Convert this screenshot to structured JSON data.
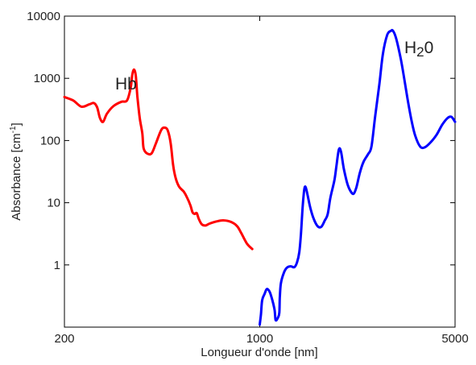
{
  "chart_data": {
    "type": "line",
    "title": "",
    "xlabel": "Longueur d'onde [nm]",
    "ylabel_main": "Absorbance [cm",
    "ylabel_sup": "-1",
    "ylabel_close": "]",
    "x_scale": "log",
    "y_scale": "log",
    "xlim": [
      200,
      5000
    ],
    "ylim": [
      0.1,
      10000
    ],
    "grid": false,
    "x_ticks": [
      {
        "value": 200,
        "label": "200"
      },
      {
        "value": 1000,
        "label": "1000"
      },
      {
        "value": 5000,
        "label": "5000"
      }
    ],
    "y_ticks": [
      {
        "value": 1,
        "label": "1"
      },
      {
        "value": 10,
        "label": "10"
      },
      {
        "value": 100,
        "label": "100"
      },
      {
        "value": 1000,
        "label": "1000"
      },
      {
        "value": 10000,
        "label": "10000"
      }
    ],
    "series": [
      {
        "name": "Hb",
        "color": "#ff0000",
        "points": [
          [
            200,
            500
          ],
          [
            215,
            440
          ],
          [
            230,
            350
          ],
          [
            245,
            380
          ],
          [
            255,
            400
          ],
          [
            262,
            340
          ],
          [
            268,
            230
          ],
          [
            275,
            200
          ],
          [
            284,
            270
          ],
          [
            300,
            360
          ],
          [
            320,
            420
          ],
          [
            335,
            440
          ],
          [
            345,
            700
          ],
          [
            350,
            1150
          ],
          [
            355,
            1380
          ],
          [
            360,
            1100
          ],
          [
            365,
            500
          ],
          [
            372,
            230
          ],
          [
            380,
            130
          ],
          [
            384,
            75
          ],
          [
            395,
            62
          ],
          [
            410,
            62
          ],
          [
            425,
            90
          ],
          [
            445,
            150
          ],
          [
            460,
            160
          ],
          [
            470,
            140
          ],
          [
            480,
            90
          ],
          [
            490,
            40
          ],
          [
            500,
            25
          ],
          [
            515,
            18
          ],
          [
            535,
            15
          ],
          [
            550,
            12
          ],
          [
            565,
            9
          ],
          [
            575,
            7
          ],
          [
            585,
            6.6
          ],
          [
            595,
            6.8
          ],
          [
            605,
            5.5
          ],
          [
            620,
            4.5
          ],
          [
            640,
            4.3
          ],
          [
            660,
            4.6
          ],
          [
            700,
            5.0
          ],
          [
            740,
            5.2
          ],
          [
            790,
            4.9
          ],
          [
            830,
            4.2
          ],
          [
            860,
            3.2
          ],
          [
            900,
            2.2
          ],
          [
            940,
            1.8
          ]
        ]
      },
      {
        "name": "H",
        "name_sub": "2",
        "name_suffix": "0",
        "color": "#0000ff",
        "points": [
          [
            1000,
            0.11
          ],
          [
            1010,
            0.16
          ],
          [
            1020,
            0.27
          ],
          [
            1040,
            0.34
          ],
          [
            1060,
            0.41
          ],
          [
            1085,
            0.37
          ],
          [
            1110,
            0.27
          ],
          [
            1130,
            0.19
          ],
          [
            1140,
            0.13
          ],
          [
            1160,
            0.14
          ],
          [
            1175,
            0.17
          ],
          [
            1180,
            0.3
          ],
          [
            1190,
            0.5
          ],
          [
            1220,
            0.75
          ],
          [
            1250,
            0.9
          ],
          [
            1290,
            0.95
          ],
          [
            1330,
            0.92
          ],
          [
            1360,
            1.1
          ],
          [
            1385,
            1.6
          ],
          [
            1405,
            3.2
          ],
          [
            1425,
            9
          ],
          [
            1440,
            15
          ],
          [
            1450,
            18
          ],
          [
            1465,
            17
          ],
          [
            1490,
            12
          ],
          [
            1520,
            8
          ],
          [
            1560,
            5.5
          ],
          [
            1610,
            4.2
          ],
          [
            1660,
            4.1
          ],
          [
            1710,
            5.2
          ],
          [
            1750,
            6.5
          ],
          [
            1790,
            12
          ],
          [
            1850,
            23
          ],
          [
            1880,
            38
          ],
          [
            1920,
            72
          ],
          [
            1955,
            65
          ],
          [
            2000,
            35
          ],
          [
            2060,
            20
          ],
          [
            2120,
            15
          ],
          [
            2170,
            14
          ],
          [
            2220,
            18
          ],
          [
            2280,
            30
          ],
          [
            2350,
            45
          ],
          [
            2440,
            60
          ],
          [
            2510,
            80
          ],
          [
            2590,
            250
          ],
          [
            2680,
            800
          ],
          [
            2760,
            2500
          ],
          [
            2860,
            5000
          ],
          [
            2950,
            5800
          ],
          [
            3000,
            5800
          ],
          [
            3080,
            4300
          ],
          [
            3200,
            2000
          ],
          [
            3300,
            900
          ],
          [
            3400,
            400
          ],
          [
            3500,
            200
          ],
          [
            3600,
            120
          ],
          [
            3750,
            80
          ],
          [
            3900,
            78
          ],
          [
            4100,
            95
          ],
          [
            4300,
            125
          ],
          [
            4500,
            180
          ],
          [
            4700,
            230
          ],
          [
            4850,
            240
          ],
          [
            5000,
            200
          ]
        ]
      }
    ]
  }
}
